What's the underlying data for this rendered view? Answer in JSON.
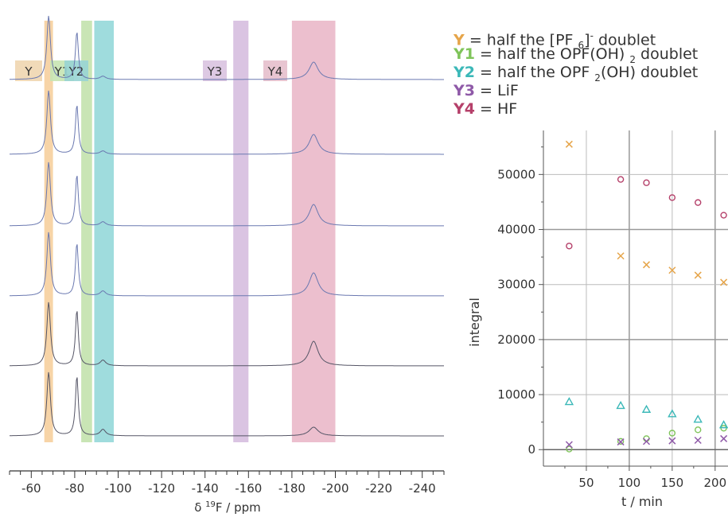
{
  "legend": [
    {
      "key": "Y",
      "color": "#e6a54a",
      "pre": "= half the [PF ",
      "sub": "6",
      "post": "]",
      "sup": "-",
      "tail": " doublet"
    },
    {
      "key": "Y1",
      "color": "#7fc45a",
      "pre": "= half the OPF(OH) ",
      "sub": "2",
      "post": " doublet",
      "sup": "",
      "tail": ""
    },
    {
      "key": "Y2",
      "color": "#3bb8b8",
      "pre": "= half the OPF ",
      "sub": "2",
      "post": "(OH) doublet",
      "sup": "",
      "tail": ""
    },
    {
      "key": "Y3",
      "color": "#8f5aa8",
      "pre": "= LiF",
      "sub": "",
      "post": "",
      "sup": "",
      "tail": ""
    },
    {
      "key": "Y4",
      "color": "#b5406a",
      "pre": "= HF",
      "sub": "",
      "post": "",
      "sup": "",
      "tail": ""
    }
  ],
  "spectrum": {
    "xlabel_delta": "δ",
    "xlabel_sup": "19",
    "xlabel_rest": "F / ppm",
    "x_range": [
      -50,
      -250
    ],
    "x_ticks": [
      -60,
      -80,
      -100,
      -120,
      -140,
      -160,
      -180,
      -200,
      -220,
      -240
    ],
    "x_tick_labels": [
      "-60",
      "-80",
      "-100",
      "-120",
      "-140",
      "-160",
      "-180",
      "-200",
      "-220",
      "-240"
    ],
    "trace_count": 6,
    "trace_colors": [
      "#6a78b0",
      "#6a78b0",
      "#6a78b0",
      "#6a78b0",
      "#555566",
      "#555566"
    ],
    "regions": [
      {
        "label": "Y",
        "from": -66,
        "to": -70,
        "color": "#f4c58a",
        "label_color": "#f0d6b0"
      },
      {
        "label": "Y1",
        "from": -83,
        "to": -88,
        "color": "#b7dc9c",
        "label_color": "#c6e4b2"
      },
      {
        "label": "Y2",
        "from": -89,
        "to": -98,
        "color": "#7fd0d2",
        "label_color": "#98d4d4"
      },
      {
        "label": "Y3",
        "from": -153,
        "to": -160,
        "color": "#cdb0d8",
        "label_color": "#d9c3e0"
      },
      {
        "label": "Y4",
        "from": -180,
        "to": -200,
        "color": "#e5a9bd",
        "label_color": "#e6bfcc"
      }
    ],
    "peaks": [
      {
        "center": -68,
        "width": 1.0,
        "heights": [
          80,
          80,
          80,
          80,
          80,
          80
        ]
      },
      {
        "center": -81,
        "width": 0.8,
        "heights": [
          60,
          62,
          64,
          66,
          70,
          75
        ]
      },
      {
        "center": -93,
        "width": 1.5,
        "heights": [
          4,
          4,
          5,
          6,
          7,
          8
        ]
      },
      {
        "center": -190,
        "width": 2.5,
        "heights": [
          22,
          25,
          27,
          29,
          31,
          11
        ]
      }
    ]
  },
  "chart_data": {
    "type": "scatter",
    "xlabel": "t / min",
    "ylabel": "integral",
    "xlim": [
      0,
      215
    ],
    "ylim": [
      -3000,
      58000
    ],
    "x_ticks": [
      50,
      100,
      150,
      200
    ],
    "y_ticks": [
      0,
      10000,
      20000,
      30000,
      40000,
      50000
    ],
    "y_tick_labels": [
      "0",
      "10000",
      "20000",
      "30000",
      "40000",
      "50000"
    ],
    "x_tick_labels": [
      "50",
      "100",
      "150",
      "200"
    ],
    "grid": true,
    "series": [
      {
        "name": "Y",
        "marker": "x",
        "color": "#e6a54a",
        "x": [
          30,
          90,
          120,
          150,
          180,
          210
        ],
        "y": [
          55500,
          35200,
          33600,
          32600,
          31700,
          30400
        ]
      },
      {
        "name": "Y1",
        "marker": "circle",
        "color": "#7fc45a",
        "x": [
          30,
          90,
          120,
          150,
          180,
          210
        ],
        "y": [
          100,
          1500,
          2000,
          3000,
          3600,
          3900
        ]
      },
      {
        "name": "Y2",
        "marker": "triangle",
        "color": "#3bb8b8",
        "x": [
          30,
          90,
          120,
          150,
          180,
          210
        ],
        "y": [
          8700,
          8000,
          7300,
          6500,
          5500,
          4500
        ]
      },
      {
        "name": "Y3",
        "marker": "x",
        "color": "#8f5aa8",
        "x": [
          30,
          90,
          120,
          150,
          180,
          210
        ],
        "y": [
          900,
          1400,
          1500,
          1600,
          1700,
          2000
        ]
      },
      {
        "name": "Y4",
        "marker": "circle",
        "color": "#b5406a",
        "x": [
          30,
          90,
          120,
          150,
          180,
          210
        ],
        "y": [
          37000,
          49100,
          48500,
          45800,
          44900,
          42600
        ]
      }
    ]
  }
}
